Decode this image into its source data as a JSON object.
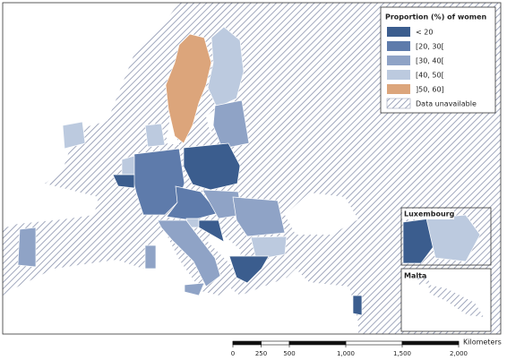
{
  "legend": {
    "title": "Proportion (%) of women",
    "items": [
      {
        "label": "< 20",
        "color": "#3b5d8e"
      },
      {
        "label": "[20, 30[",
        "color": "#5e7bab"
      },
      {
        "label": "[30, 40[",
        "color": "#8fa3c6"
      },
      {
        "label": "[40, 50[",
        "color": "#bccadf"
      },
      {
        "label": "]50, 60]",
        "color": "#dca57b"
      },
      {
        "label": "Data unavailable"
      }
    ]
  },
  "insets": [
    {
      "label": "Luxembourg"
    },
    {
      "label": "Malta"
    }
  ],
  "scale_bar": {
    "unit": "Kilometers",
    "ticks": [
      0,
      250,
      500,
      {
        "value": 1000,
        "label": "1,000"
      },
      {
        "value": 1500,
        "label": "1,500"
      },
      {
        "value": 2000,
        "label": "2,000"
      }
    ]
  }
}
